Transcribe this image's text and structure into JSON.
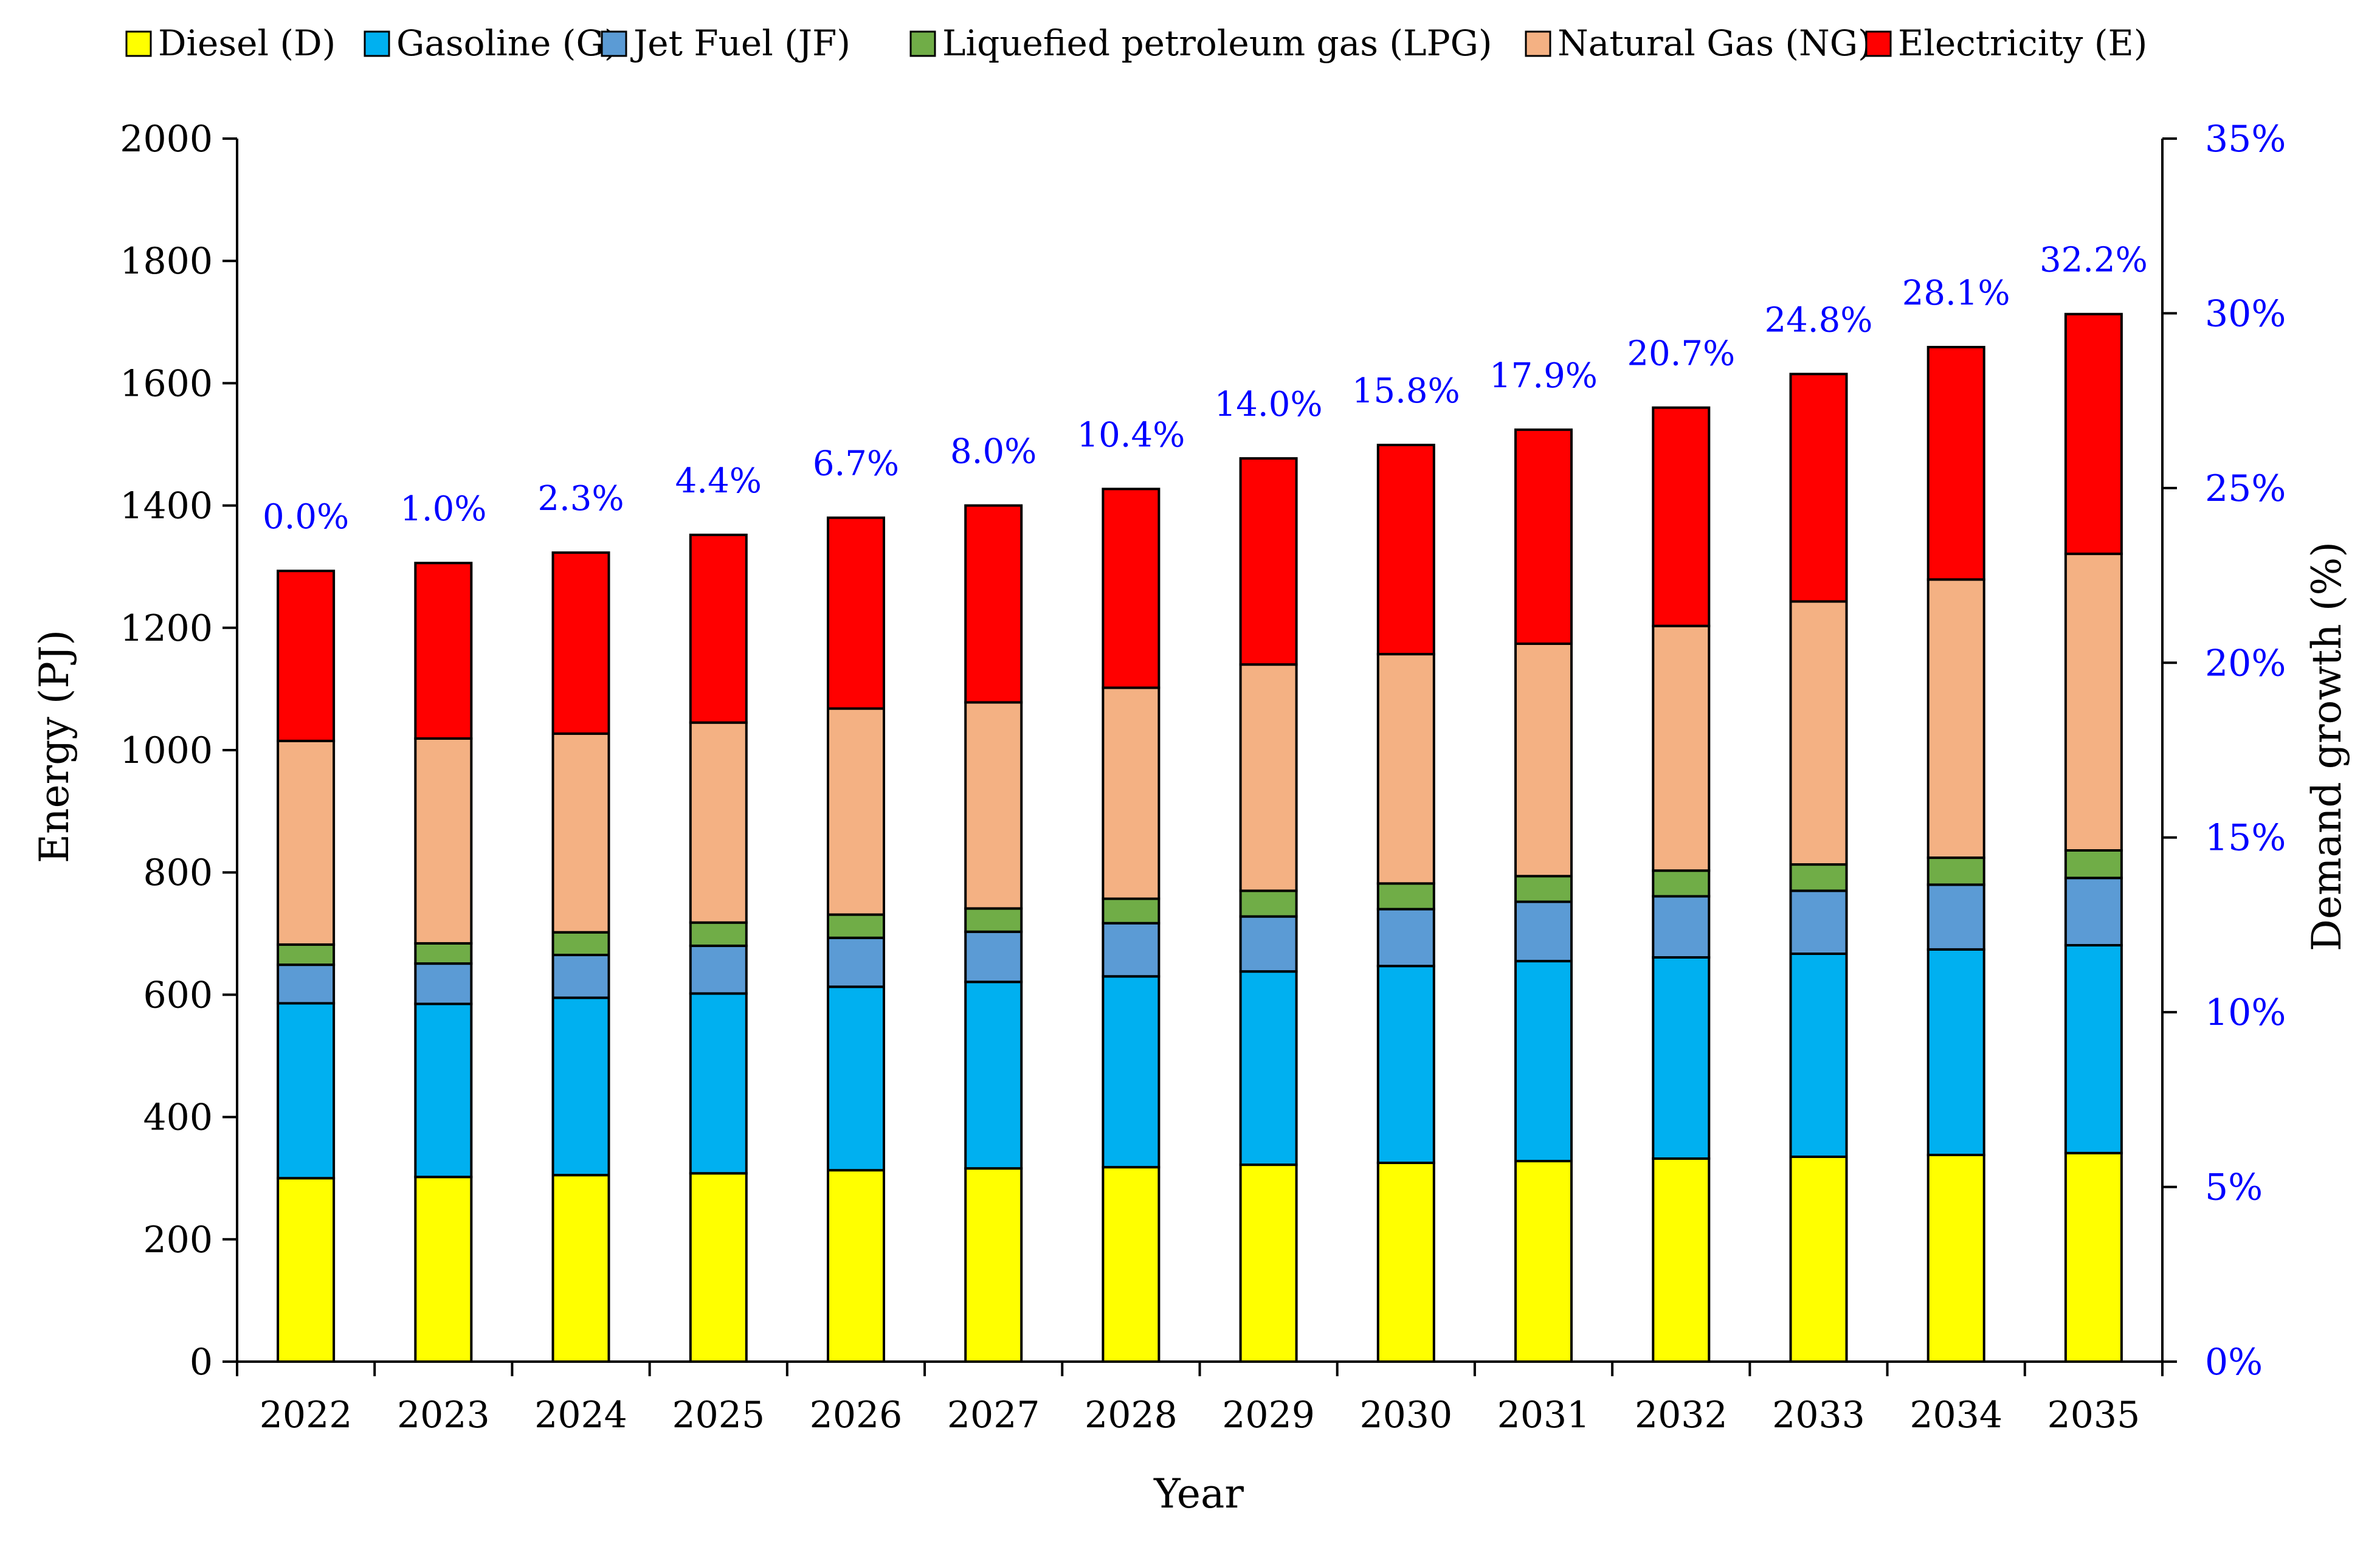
{
  "chart_data": {
    "type": "bar",
    "stacked": true,
    "categories": [
      "2022",
      "2023",
      "2024",
      "2025",
      "2026",
      "2027",
      "2028",
      "2029",
      "2030",
      "2031",
      "2032",
      "2033",
      "2034",
      "2035"
    ],
    "series": [
      {
        "name": "Diesel (D)",
        "color": "#FFFF00",
        "values": [
          300,
          302,
          305,
          308,
          313,
          316,
          318,
          322,
          325,
          328,
          332,
          335,
          338,
          341
        ]
      },
      {
        "name": "Gasoline (G)",
        "color": "#00B0F0",
        "values": [
          286,
          283,
          290,
          294,
          300,
          305,
          312,
          316,
          322,
          327,
          329,
          332,
          336,
          340
        ]
      },
      {
        "name": "Jet Fuel (JF)",
        "color": "#5B9BD5",
        "values": [
          63,
          66,
          70,
          78,
          80,
          82,
          87,
          90,
          93,
          97,
          100,
          103,
          106,
          110
        ]
      },
      {
        "name": "Liquefied petroleum gas (LPG)",
        "color": "#70AD47",
        "values": [
          33,
          33,
          37,
          38,
          38,
          38,
          40,
          42,
          42,
          42,
          42,
          43,
          44,
          45
        ]
      },
      {
        "name": "Natural Gas (NG)",
        "color": "#F4B183",
        "values": [
          333,
          335,
          325,
          327,
          337,
          337,
          345,
          370,
          375,
          380,
          400,
          430,
          455,
          485
        ]
      },
      {
        "name": "Electricity (E)",
        "color": "#FF0000",
        "values": [
          278,
          287,
          296,
          307,
          312,
          322,
          325,
          337,
          342,
          350,
          357,
          372,
          380,
          392
        ]
      }
    ],
    "growth_labels": [
      "0.0%",
      "1.0%",
      "2.3%",
      "4.4%",
      "6.7%",
      "8.0%",
      "10.4%",
      "14.0%",
      "15.8%",
      "17.9%",
      "20.7%",
      "24.8%",
      "28.1%",
      "32.2%"
    ],
    "growth_values": [
      0.0,
      1.0,
      2.3,
      4.4,
      6.7,
      8.0,
      10.4,
      14.0,
      15.8,
      17.9,
      20.7,
      24.8,
      28.1,
      32.2
    ],
    "xlabel": "Year",
    "ylabel": "Energy (PJ)",
    "ylabel_right": "Demand growth (%)",
    "ylim": [
      0,
      2000
    ],
    "yticks": [
      "0",
      "200",
      "400",
      "600",
      "800",
      "1000",
      "1200",
      "1400",
      "1600",
      "1800",
      "2000"
    ],
    "ylim_right": [
      0,
      35
    ],
    "yticks_right": [
      "0%",
      "5%",
      "10%",
      "15%",
      "20%",
      "25%",
      "30%",
      "35%"
    ],
    "right_axis_color": "#0000FF",
    "legend_position": "top",
    "grid": false
  }
}
